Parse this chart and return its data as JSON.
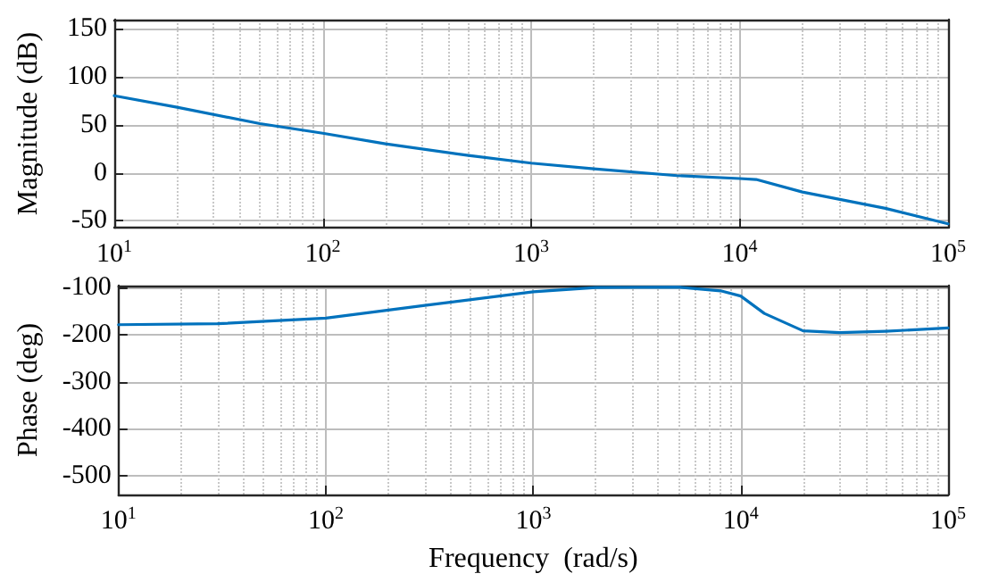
{
  "chart_data": [
    {
      "type": "line",
      "ylabel": "Magnitude (dB)",
      "log": "x",
      "grid": true,
      "line_style": "solid",
      "marker": "none",
      "x": [
        10,
        20,
        50,
        100,
        200,
        500,
        1000,
        2000,
        5000,
        10000,
        12000,
        20000,
        50000,
        100000
      ],
      "series": [
        {
          "color": "#0072bd",
          "values": [
            80,
            68,
            51,
            41,
            30,
            18,
            10,
            4,
            -3,
            -6,
            -7,
            -20,
            -37,
            -53
          ]
        }
      ],
      "xlim": [
        10,
        100000
      ],
      "xticks": [
        {
          "value": 10,
          "label": "10$^{1}$"
        },
        {
          "value": 100,
          "label": "10$^{2}$"
        },
        {
          "value": 1000,
          "label": "10$^{3}$"
        },
        {
          "value": 10000,
          "label": "10$^{4}$"
        },
        {
          "value": 100000,
          "label": "10$^{5}$"
        }
      ],
      "ylim": [
        -57,
        159
      ],
      "yticks": [
        -50,
        0,
        50,
        100,
        150
      ]
    },
    {
      "type": "line",
      "ylabel": "Phase (deg)",
      "xlabel": "Frequency  (rad/s)",
      "log": "x",
      "grid": true,
      "line_style": "solid",
      "marker": "none",
      "x": [
        10,
        30,
        100,
        300,
        1000,
        2000,
        5000,
        8000,
        10000,
        13000,
        20000,
        30000,
        50000,
        100000
      ],
      "series": [
        {
          "color": "#0072bd",
          "values": [
            -179,
            -177,
            -165,
            -138,
            -109,
            -100,
            -99,
            -107,
            -118,
            -155,
            -192,
            -196,
            -193,
            -186
          ]
        }
      ],
      "xlim": [
        10,
        100000
      ],
      "xticks": [
        {
          "value": 10,
          "label": "10$^{1}$"
        },
        {
          "value": 100,
          "label": "10$^{2}$"
        },
        {
          "value": 1000,
          "label": "10$^{3}$"
        },
        {
          "value": 10000,
          "label": "10$^{4}$"
        },
        {
          "value": 100000,
          "label": "10$^{5}$"
        }
      ],
      "ylim": [
        -540,
        -96
      ],
      "yticks": [
        -500,
        -400,
        -300,
        -200,
        -100
      ]
    }
  ]
}
